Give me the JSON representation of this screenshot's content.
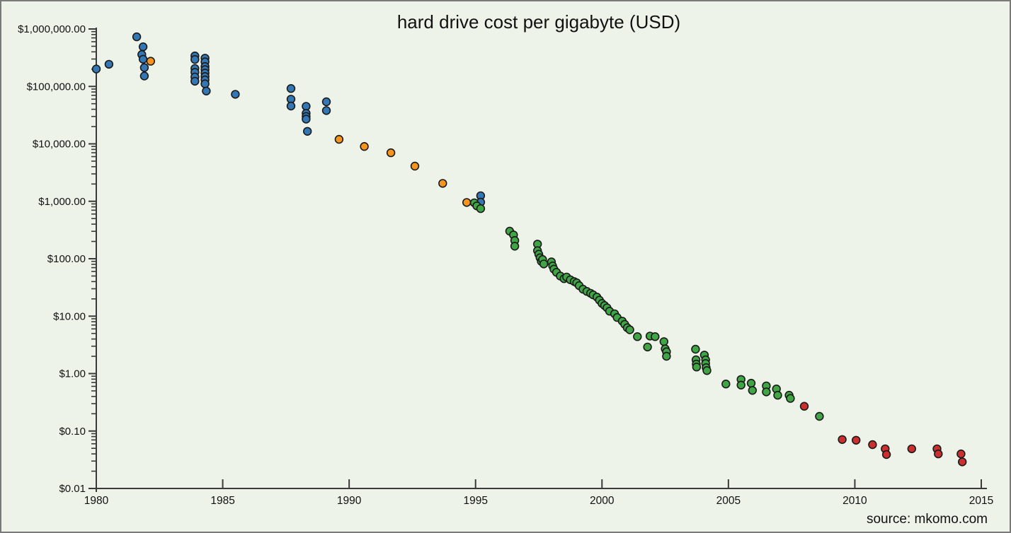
{
  "window": {
    "background_color": "#eef3ea",
    "border_color": "#7a7a7a"
  },
  "chart_data": {
    "type": "scatter",
    "title": "hard drive cost per gigabyte (USD)",
    "source_note": "source: mkomo.com",
    "x_axis": {
      "min": 1980,
      "max": 2015,
      "tick_values": [
        1980,
        1985,
        1990,
        1995,
        2000,
        2005,
        2010,
        2015
      ],
      "tick_labels": [
        "1980",
        "1985",
        "1990",
        "1995",
        "2000",
        "2005",
        "2010",
        "2015"
      ]
    },
    "y_axis": {
      "scale": "log",
      "min": 0.01,
      "max": 1000000,
      "tick_values": [
        1000000,
        100000,
        10000,
        1000,
        100,
        10,
        1,
        0.1,
        0.01
      ],
      "tick_labels": [
        "$1,000,000.00",
        "$100,000.00",
        "$10,000.00",
        "$1,000.00",
        "$100.00",
        "$10.00",
        "$1.00",
        "$0.10",
        "$0.01"
      ]
    },
    "grid": false,
    "legend": "none",
    "marker": {
      "stroke_color": "#1a1a1a"
    },
    "series": [
      {
        "name": "blue",
        "color": "#3377b4",
        "points": [
          [
            1980.0,
            201000
          ],
          [
            1980.5,
            243000
          ],
          [
            1981.6,
            730000
          ],
          [
            1981.85,
            490000
          ],
          [
            1981.8,
            360000
          ],
          [
            1981.85,
            297000
          ],
          [
            1981.9,
            213000
          ],
          [
            1981.9,
            152000
          ],
          [
            1983.9,
            340000
          ],
          [
            1983.9,
            295000
          ],
          [
            1983.9,
            205000
          ],
          [
            1983.9,
            176000
          ],
          [
            1983.9,
            146000
          ],
          [
            1983.9,
            123000
          ],
          [
            1984.3,
            310000
          ],
          [
            1984.3,
            268000
          ],
          [
            1984.3,
            222000
          ],
          [
            1984.3,
            196000
          ],
          [
            1984.3,
            171000
          ],
          [
            1984.3,
            149000
          ],
          [
            1984.3,
            130000
          ],
          [
            1984.3,
            111000
          ],
          [
            1984.35,
            83000
          ],
          [
            1985.5,
            73000
          ],
          [
            1987.7,
            92000
          ],
          [
            1987.7,
            60000
          ],
          [
            1987.7,
            45500
          ],
          [
            1988.3,
            45000
          ],
          [
            1988.3,
            34000
          ],
          [
            1988.3,
            30000
          ],
          [
            1988.3,
            27000
          ],
          [
            1988.35,
            16500
          ],
          [
            1989.1,
            54000
          ],
          [
            1989.1,
            38000
          ],
          [
            1995.2,
            1250
          ],
          [
            1995.2,
            965
          ]
        ]
      },
      {
        "name": "orange",
        "color": "#f7941e",
        "points": [
          [
            1982.15,
            275000
          ],
          [
            1989.6,
            12000
          ],
          [
            1990.6,
            9000
          ],
          [
            1991.65,
            7000
          ],
          [
            1992.6,
            4100
          ],
          [
            1993.7,
            2050
          ],
          [
            1994.65,
            955
          ]
        ]
      },
      {
        "name": "green",
        "color": "#3fa545",
        "points": [
          [
            1994.95,
            940
          ],
          [
            1995.05,
            830
          ],
          [
            1995.2,
            745
          ],
          [
            1996.35,
            302
          ],
          [
            1996.5,
            260
          ],
          [
            1996.55,
            208
          ],
          [
            1996.55,
            165
          ],
          [
            1997.45,
            180
          ],
          [
            1997.45,
            138
          ],
          [
            1997.5,
            120
          ],
          [
            1997.55,
            104
          ],
          [
            1997.6,
            90
          ],
          [
            1997.65,
            97
          ],
          [
            1997.7,
            81
          ],
          [
            1998.0,
            88
          ],
          [
            1998.05,
            75
          ],
          [
            1998.1,
            66
          ],
          [
            1998.2,
            58
          ],
          [
            1998.35,
            50
          ],
          [
            1998.5,
            45
          ],
          [
            1998.6,
            48
          ],
          [
            1998.75,
            43
          ],
          [
            1998.9,
            40
          ],
          [
            1999.0,
            38
          ],
          [
            1999.1,
            34
          ],
          [
            1999.25,
            29.5
          ],
          [
            1999.4,
            27
          ],
          [
            1999.55,
            25
          ],
          [
            1999.65,
            23.5
          ],
          [
            1999.8,
            21.5
          ],
          [
            1999.9,
            19
          ],
          [
            2000.0,
            16.7
          ],
          [
            2000.1,
            15.3
          ],
          [
            2000.2,
            14.0
          ],
          [
            2000.3,
            12.2
          ],
          [
            2000.5,
            11.0
          ],
          [
            2000.6,
            9.5
          ],
          [
            2000.8,
            8.2
          ],
          [
            2000.9,
            7.2
          ],
          [
            2001.0,
            6.3
          ],
          [
            2001.1,
            5.8
          ],
          [
            2001.4,
            4.4
          ],
          [
            2001.8,
            2.9
          ],
          [
            2001.9,
            4.5
          ],
          [
            2002.1,
            4.4
          ],
          [
            2002.45,
            3.6
          ],
          [
            2002.5,
            2.7
          ],
          [
            2002.55,
            2.4
          ],
          [
            2002.55,
            2.0
          ],
          [
            2003.7,
            2.66
          ],
          [
            2003.72,
            1.74
          ],
          [
            2003.73,
            1.46
          ],
          [
            2003.74,
            1.3
          ],
          [
            2004.05,
            2.1
          ],
          [
            2004.1,
            1.74
          ],
          [
            2004.1,
            1.5
          ],
          [
            2004.12,
            1.27
          ],
          [
            2004.15,
            1.13
          ],
          [
            2004.9,
            0.66
          ],
          [
            2005.5,
            0.79
          ],
          [
            2005.5,
            0.63
          ],
          [
            2005.9,
            0.68
          ],
          [
            2005.95,
            0.51
          ],
          [
            2006.5,
            0.61
          ],
          [
            2006.5,
            0.48
          ],
          [
            2006.9,
            0.54
          ],
          [
            2006.95,
            0.42
          ],
          [
            2007.4,
            0.42
          ],
          [
            2007.45,
            0.37
          ],
          [
            2008.6,
            0.18
          ]
        ]
      },
      {
        "name": "red",
        "color": "#cd2f2f",
        "points": [
          [
            2008.0,
            0.27
          ],
          [
            2009.5,
            0.071
          ],
          [
            2010.05,
            0.069
          ],
          [
            2010.7,
            0.058
          ],
          [
            2011.2,
            0.049
          ],
          [
            2011.25,
            0.039
          ],
          [
            2012.25,
            0.049
          ],
          [
            2013.25,
            0.049
          ],
          [
            2013.3,
            0.04
          ],
          [
            2014.2,
            0.04
          ],
          [
            2014.25,
            0.029
          ]
        ]
      }
    ]
  }
}
